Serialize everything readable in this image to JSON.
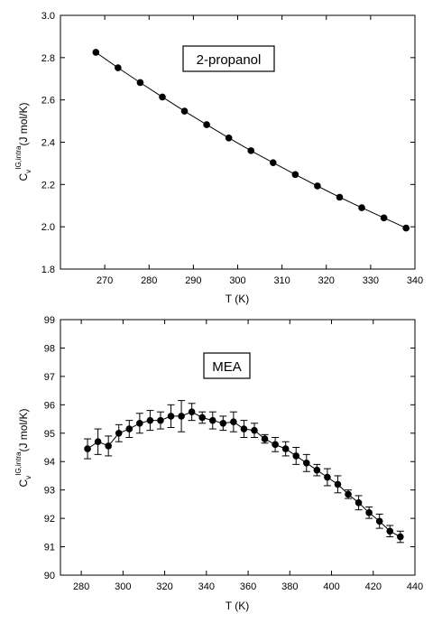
{
  "chart_data": [
    {
      "type": "line",
      "ylabel_main": "C",
      "ylabel_sub": "v",
      "ylabel_sup": "IG,intra",
      "ylabel_unit": "(J mol/K)",
      "xlabel": "T (K)",
      "xlim": [
        260,
        340
      ],
      "ylim": [
        1.8,
        3.0
      ],
      "xticks": [
        270,
        280,
        290,
        300,
        310,
        320,
        330,
        340
      ],
      "yticks": [
        "1.8",
        "2.0",
        "2.2",
        "2.4",
        "2.6",
        "2.8",
        "3.0"
      ],
      "legend_label": "2-propanol",
      "grid": false,
      "series": [
        {
          "x": [
            268,
            273,
            278,
            283,
            288,
            293,
            298,
            303,
            308,
            313,
            318,
            323,
            328,
            333,
            338
          ],
          "y": [
            2.825,
            2.752,
            2.682,
            2.614,
            2.547,
            2.483,
            2.42,
            2.36,
            2.303,
            2.247,
            2.193,
            2.14,
            2.09,
            2.042,
            1.994
          ]
        }
      ]
    },
    {
      "type": "line",
      "ylabel_main": "C",
      "ylabel_sub": "v",
      "ylabel_sup": "IG,intra",
      "ylabel_unit": "(J mol/K)",
      "xlabel": "T (K)",
      "xlim": [
        270,
        440
      ],
      "ylim": [
        90,
        99
      ],
      "xticks": [
        280,
        300,
        320,
        340,
        360,
        380,
        400,
        420,
        440
      ],
      "yticks": [
        "90",
        "91",
        "92",
        "93",
        "94",
        "95",
        "96",
        "97",
        "98",
        "99"
      ],
      "legend_label": "MEA",
      "grid": false,
      "series": [
        {
          "x": [
            283,
            288,
            293,
            298,
            303,
            308,
            313,
            318,
            323,
            328,
            333,
            338,
            343,
            348,
            353,
            358,
            363,
            368,
            373,
            378,
            383,
            388,
            393,
            398,
            403,
            408,
            413,
            418,
            423,
            428,
            433
          ],
          "y": [
            94.45,
            94.7,
            94.55,
            95.0,
            95.15,
            95.35,
            95.45,
            95.45,
            95.6,
            95.6,
            95.75,
            95.55,
            95.45,
            95.35,
            95.4,
            95.15,
            95.1,
            94.8,
            94.6,
            94.45,
            94.2,
            93.95,
            93.7,
            93.45,
            93.2,
            92.85,
            92.55,
            92.2,
            91.9,
            91.55,
            91.35
          ],
          "err": [
            0.35,
            0.45,
            0.35,
            0.3,
            0.3,
            0.35,
            0.35,
            0.3,
            0.4,
            0.55,
            0.3,
            0.2,
            0.3,
            0.25,
            0.35,
            0.3,
            0.25,
            0.15,
            0.25,
            0.25,
            0.3,
            0.3,
            0.2,
            0.3,
            0.3,
            0.15,
            0.25,
            0.2,
            0.25,
            0.2,
            0.2
          ]
        }
      ]
    }
  ]
}
